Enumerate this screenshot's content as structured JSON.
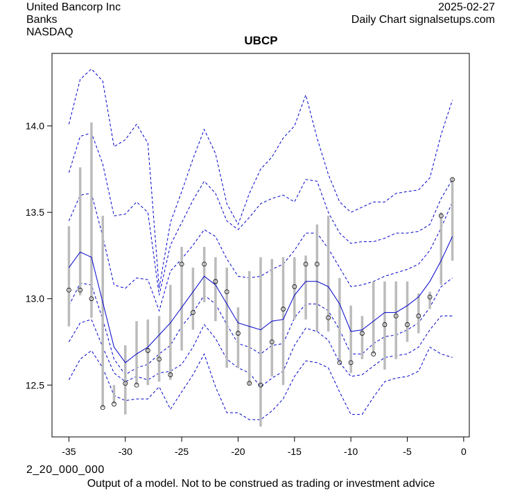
{
  "header": {
    "company": "United Bancorp Inc",
    "sector": "Banks",
    "exchange": "NASDAQ",
    "date": "2025-02-27",
    "source": "Daily Chart signalsetups.com"
  },
  "footer": {
    "code": "2_20_000_000",
    "disclaimer": "Output of a model. Not to be construed as trading or investment advice"
  },
  "colors": {
    "bands": "#0000cc",
    "mean": "#0000cc",
    "range_bars": "#bbbbbb",
    "close_points": "#000000"
  },
  "chart_data": {
    "type": "line",
    "title": "UBCP",
    "xlabel": "",
    "ylabel": "",
    "xlim": [
      -36.5,
      0.5
    ],
    "ylim": [
      12.2,
      14.42
    ],
    "x_ticks": [
      -35,
      -30,
      -25,
      -20,
      -15,
      -10,
      -5,
      0
    ],
    "y_ticks": [
      12.5,
      13.0,
      13.5,
      14.0
    ],
    "y_tick_labels": [
      "12.5",
      "13.0",
      "13.5",
      "14.0"
    ],
    "x": [
      -35,
      -34,
      -33,
      -32,
      -31,
      -30,
      -29,
      -28,
      -27,
      -26,
      -25,
      -24,
      -23,
      -22,
      -21,
      -20,
      -19,
      -18,
      -17,
      -16,
      -15,
      -14,
      -13,
      -12,
      -11,
      -10,
      -9,
      -8,
      -7,
      -6,
      -5,
      -4,
      -3,
      -2,
      -1
    ],
    "close": [
      13.05,
      13.05,
      13.0,
      12.37,
      12.39,
      12.51,
      12.5,
      12.7,
      12.65,
      12.56,
      13.2,
      12.92,
      13.2,
      13.1,
      13.04,
      12.8,
      12.51,
      12.5,
      12.75,
      12.94,
      13.07,
      13.2,
      13.2,
      12.89,
      12.63,
      12.63,
      12.8,
      12.68,
      12.85,
      12.9,
      12.85,
      12.9,
      13.01,
      13.48,
      13.69
    ],
    "high": [
      13.42,
      13.76,
      14.02,
      13.48,
      12.5,
      12.73,
      12.87,
      12.88,
      12.9,
      13.08,
      13.3,
      13.18,
      13.3,
      13.24,
      13.18,
      12.95,
      13.16,
      13.24,
      13.23,
      13.24,
      13.24,
      13.25,
      13.43,
      13.48,
      13.12,
      12.96,
      12.9,
      13.1,
      13.1,
      13.1,
      13.1,
      13.03,
      13.04,
      13.5,
      13.7
    ],
    "low": [
      12.84,
      13.02,
      12.89,
      12.37,
      12.39,
      12.33,
      12.5,
      12.5,
      12.52,
      12.53,
      12.7,
      12.82,
      12.98,
      12.87,
      12.6,
      12.6,
      12.5,
      12.26,
      12.55,
      12.5,
      12.88,
      12.88,
      12.81,
      12.81,
      12.63,
      12.57,
      12.65,
      12.68,
      12.59,
      12.65,
      12.75,
      12.8,
      12.94,
      13.08,
      13.22
    ],
    "series": [
      {
        "name": "",
        "role": "mean",
        "values": [
          13.18,
          13.27,
          13.24,
          12.98,
          12.72,
          12.63,
          12.68,
          12.72,
          12.79,
          12.86,
          12.95,
          13.04,
          13.13,
          13.08,
          12.97,
          12.86,
          12.84,
          12.82,
          12.87,
          12.88,
          13.02,
          13.1,
          13.1,
          13.07,
          12.97,
          12.81,
          12.82,
          12.87,
          12.92,
          12.92,
          12.96,
          13.01,
          13.1,
          13.22,
          13.36
        ]
      },
      {
        "name": "",
        "role": "band+1",
        "values": [
          13.45,
          13.6,
          13.61,
          13.36,
          13.08,
          13.06,
          13.12,
          13.11,
          12.93,
          13.16,
          13.23,
          13.31,
          13.4,
          13.36,
          13.23,
          13.13,
          13.12,
          13.13,
          13.17,
          13.2,
          13.28,
          13.38,
          13.38,
          13.29,
          13.18,
          13.07,
          13.08,
          13.1,
          13.13,
          13.15,
          13.17,
          13.2,
          13.28,
          13.41,
          13.56
        ]
      },
      {
        "name": "",
        "role": "band+2",
        "values": [
          13.73,
          13.94,
          13.96,
          13.78,
          13.48,
          13.49,
          13.56,
          13.5,
          13.02,
          13.31,
          13.44,
          13.57,
          13.68,
          13.61,
          13.45,
          13.4,
          13.47,
          13.55,
          13.58,
          13.6,
          13.56,
          13.69,
          13.68,
          13.5,
          13.38,
          13.32,
          13.33,
          13.33,
          13.35,
          13.38,
          13.38,
          13.39,
          13.43,
          13.58,
          13.69
        ]
      },
      {
        "name": "",
        "role": "band+3",
        "values": [
          14.01,
          14.27,
          14.33,
          14.26,
          13.88,
          13.92,
          14.01,
          13.9,
          13.06,
          13.44,
          13.62,
          13.81,
          13.98,
          13.84,
          13.55,
          13.43,
          13.61,
          13.75,
          13.82,
          13.93,
          14.0,
          14.18,
          13.93,
          13.72,
          13.56,
          13.5,
          13.53,
          13.56,
          13.56,
          13.61,
          13.62,
          13.63,
          13.7,
          13.95,
          14.15
        ]
      },
      {
        "name": "",
        "role": "band-1",
        "values": [
          12.96,
          13.09,
          13.08,
          12.88,
          12.65,
          12.56,
          12.6,
          12.62,
          12.68,
          12.73,
          12.84,
          12.92,
          13.02,
          12.97,
          12.85,
          12.74,
          12.72,
          12.68,
          12.73,
          12.74,
          12.89,
          12.97,
          12.97,
          12.93,
          12.82,
          12.68,
          12.68,
          12.74,
          12.78,
          12.79,
          12.82,
          12.86,
          12.95,
          13.07,
          13.12
        ]
      },
      {
        "name": "",
        "role": "band-2",
        "values": [
          12.75,
          12.86,
          12.88,
          12.72,
          12.57,
          12.52,
          12.55,
          12.53,
          12.57,
          12.58,
          12.62,
          12.72,
          12.85,
          12.77,
          12.65,
          12.6,
          12.57,
          12.49,
          12.54,
          12.58,
          12.73,
          12.83,
          12.81,
          12.76,
          12.63,
          12.55,
          12.56,
          12.61,
          12.66,
          12.67,
          12.68,
          12.72,
          12.82,
          12.9,
          12.9
        ]
      },
      {
        "name": "",
        "role": "band-3",
        "values": [
          12.53,
          12.65,
          12.7,
          12.6,
          12.44,
          12.41,
          12.42,
          12.42,
          12.49,
          12.36,
          12.46,
          12.56,
          12.68,
          12.49,
          12.34,
          12.34,
          12.3,
          12.3,
          12.35,
          12.42,
          12.55,
          12.64,
          12.63,
          12.6,
          12.46,
          12.33,
          12.33,
          12.43,
          12.52,
          12.54,
          12.55,
          12.58,
          12.72,
          12.68,
          12.66
        ]
      }
    ],
    "grid": false,
    "legend": "none"
  }
}
